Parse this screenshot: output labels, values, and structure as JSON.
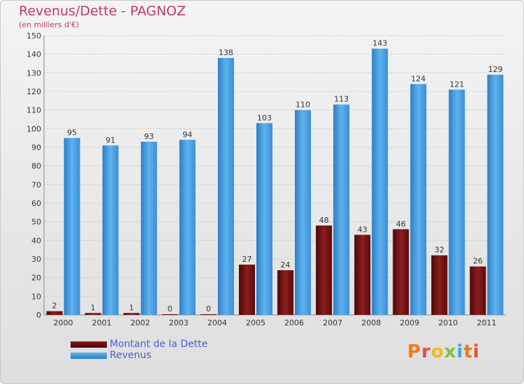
{
  "chart_data": {
    "type": "bar",
    "title": "Revenus/Dette - PAGNOZ",
    "subtitle": "(en milliers d'€)",
    "categories": [
      "2000",
      "2001",
      "2002",
      "2003",
      "2004",
      "2005",
      "2006",
      "2007",
      "2008",
      "2009",
      "2010",
      "2011"
    ],
    "series": [
      {
        "name": "Montant de la Dette",
        "color": "#6b0f0f",
        "values": [
          2,
          1,
          1,
          0,
          0,
          27,
          24,
          48,
          43,
          46,
          32,
          26
        ]
      },
      {
        "name": "Revenus",
        "color": "#3d96dc",
        "values": [
          95,
          91,
          93,
          94,
          138,
          103,
          110,
          113,
          143,
          124,
          121,
          129
        ]
      }
    ],
    "ylim": [
      0,
      150
    ],
    "ytick_step": 10,
    "grid": true,
    "legend_position": "bottom-left"
  },
  "brand": {
    "logo_text": "Proxiti",
    "colors": [
      "#f07a1a",
      "#e64a4a",
      "#f2b81e",
      "#7fc243",
      "#3fa6e0"
    ]
  }
}
